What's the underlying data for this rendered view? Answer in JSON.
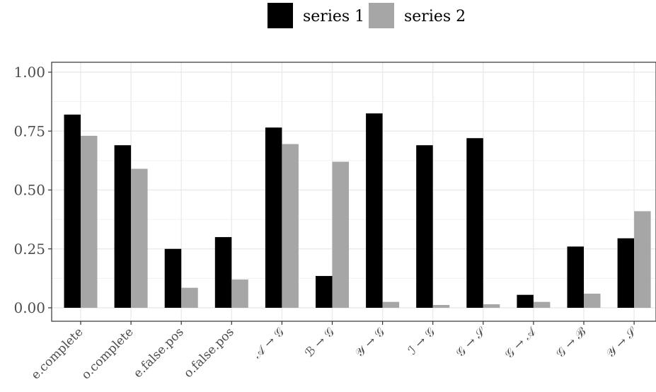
{
  "chart_data": {
    "type": "bar",
    "categories": [
      "e.complete",
      "o.complete",
      "e.false.pos",
      "o.false.pos",
      "𝒜 → 𝒢",
      "ℬ → 𝒢",
      "𝒴 → 𝒢",
      "ℐ → 𝒢",
      "𝒢 → 𝒮",
      "𝒢 → 𝒜",
      "𝒢 → ℬ",
      "𝒴 → 𝒮"
    ],
    "series": [
      {
        "name": "series 1",
        "color": "#000000",
        "values": [
          0.82,
          0.69,
          0.25,
          0.3,
          0.765,
          0.135,
          0.825,
          0.69,
          0.72,
          0.055,
          0.26,
          0.295
        ]
      },
      {
        "name": "series 2",
        "color": "#a6a6a6",
        "values": [
          0.73,
          0.59,
          0.085,
          0.12,
          0.695,
          0.62,
          0.025,
          0.012,
          0.015,
          0.025,
          0.06,
          0.41
        ]
      }
    ],
    "yticks": [
      "0.00",
      "0.25",
      "0.50",
      "0.75",
      "1.00"
    ],
    "ylim": [
      0,
      1.0
    ],
    "legend_position": "top",
    "grid": true,
    "xlabel": "",
    "ylabel": ""
  }
}
